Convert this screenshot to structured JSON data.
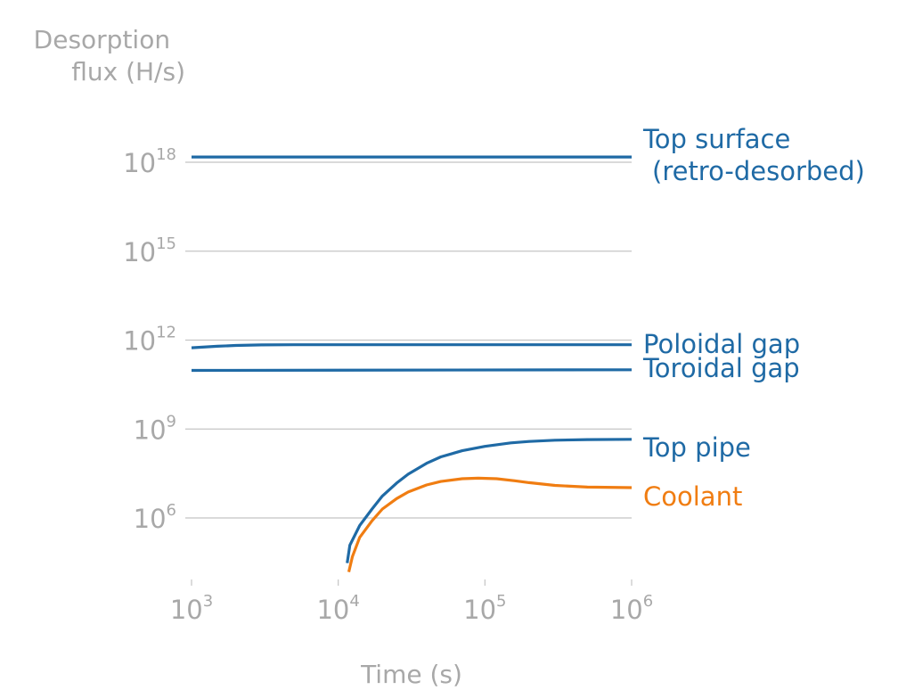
{
  "chart_data": {
    "type": "line",
    "ylabel": [
      "Desorption",
      "flux (H/s)"
    ],
    "xlabel": "Time (s)",
    "x_scale": "log",
    "y_scale": "log",
    "xlim": [
      1000,
      1000000
    ],
    "ylim": [
      10000.0,
      1e+20
    ],
    "grid": "horizontal",
    "x_ticks": [
      {
        "base": "10",
        "exp": "3",
        "value": 1000
      },
      {
        "base": "10",
        "exp": "4",
        "value": 10000
      },
      {
        "base": "10",
        "exp": "5",
        "value": 100000
      },
      {
        "base": "10",
        "exp": "6",
        "value": 1000000
      }
    ],
    "y_ticks": [
      {
        "base": "10",
        "exp": "6",
        "value": 1000000.0
      },
      {
        "base": "10",
        "exp": "9",
        "value": 1000000000.0
      },
      {
        "base": "10",
        "exp": "12",
        "value": 1000000000000.0
      },
      {
        "base": "10",
        "exp": "15",
        "value": 1000000000000000.0
      },
      {
        "base": "10",
        "exp": "18",
        "value": 1e+18
      }
    ],
    "series": [
      {
        "name": [
          "Top surface",
          " (retro-desorbed)"
        ],
        "color": "#1f6aa5",
        "x": [
          1000,
          1000000
        ],
        "y": [
          1.5e+18,
          1.5e+18
        ]
      },
      {
        "name": [
          "Poloidal gap"
        ],
        "color": "#1f6aa5",
        "x": [
          1000,
          1500,
          2000,
          3000,
          5000,
          10000,
          100000,
          1000000
        ],
        "y": [
          550000000000.0,
          620000000000.0,
          660000000000.0,
          690000000000.0,
          700000000000.0,
          700000000000.0,
          700000000000.0,
          700000000000.0
        ]
      },
      {
        "name": [
          "Toroidal gap"
        ],
        "color": "#1f6aa5",
        "x": [
          1000,
          1000000
        ],
        "y": [
          95000000000.0,
          100000000000.0
        ]
      },
      {
        "name": [
          "Top pipe"
        ],
        "color": "#1f6aa5",
        "x": [
          11500,
          12000,
          14000,
          17000,
          20000,
          25000,
          30000,
          40000,
          50000,
          70000,
          100000,
          150000,
          200000,
          300000,
          500000,
          1000000
        ],
        "y": [
          30000.0,
          120000.0,
          550000.0,
          2000000.0,
          5500000.0,
          15000000.0,
          30000000.0,
          70000000.0,
          115000000.0,
          185000000.0,
          260000000.0,
          340000000.0,
          380000000.0,
          420000000.0,
          440000000.0,
          450000000.0
        ]
      },
      {
        "name": [
          "Coolant"
        ],
        "color": "#f07d12",
        "x": [
          11800,
          12500,
          14000,
          17000,
          20000,
          25000,
          30000,
          40000,
          50000,
          70000,
          90000,
          120000,
          160000,
          200000,
          300000,
          500000,
          1000000
        ],
        "y": [
          15000.0,
          50000.0,
          220000.0,
          800000.0,
          2000000.0,
          4500000.0,
          7500000.0,
          13000000.0,
          17000000.0,
          21000000.0,
          22000000.0,
          21000000.0,
          18000000.0,
          15500000.0,
          12500000.0,
          11000000.0,
          10500000.0
        ]
      }
    ]
  }
}
